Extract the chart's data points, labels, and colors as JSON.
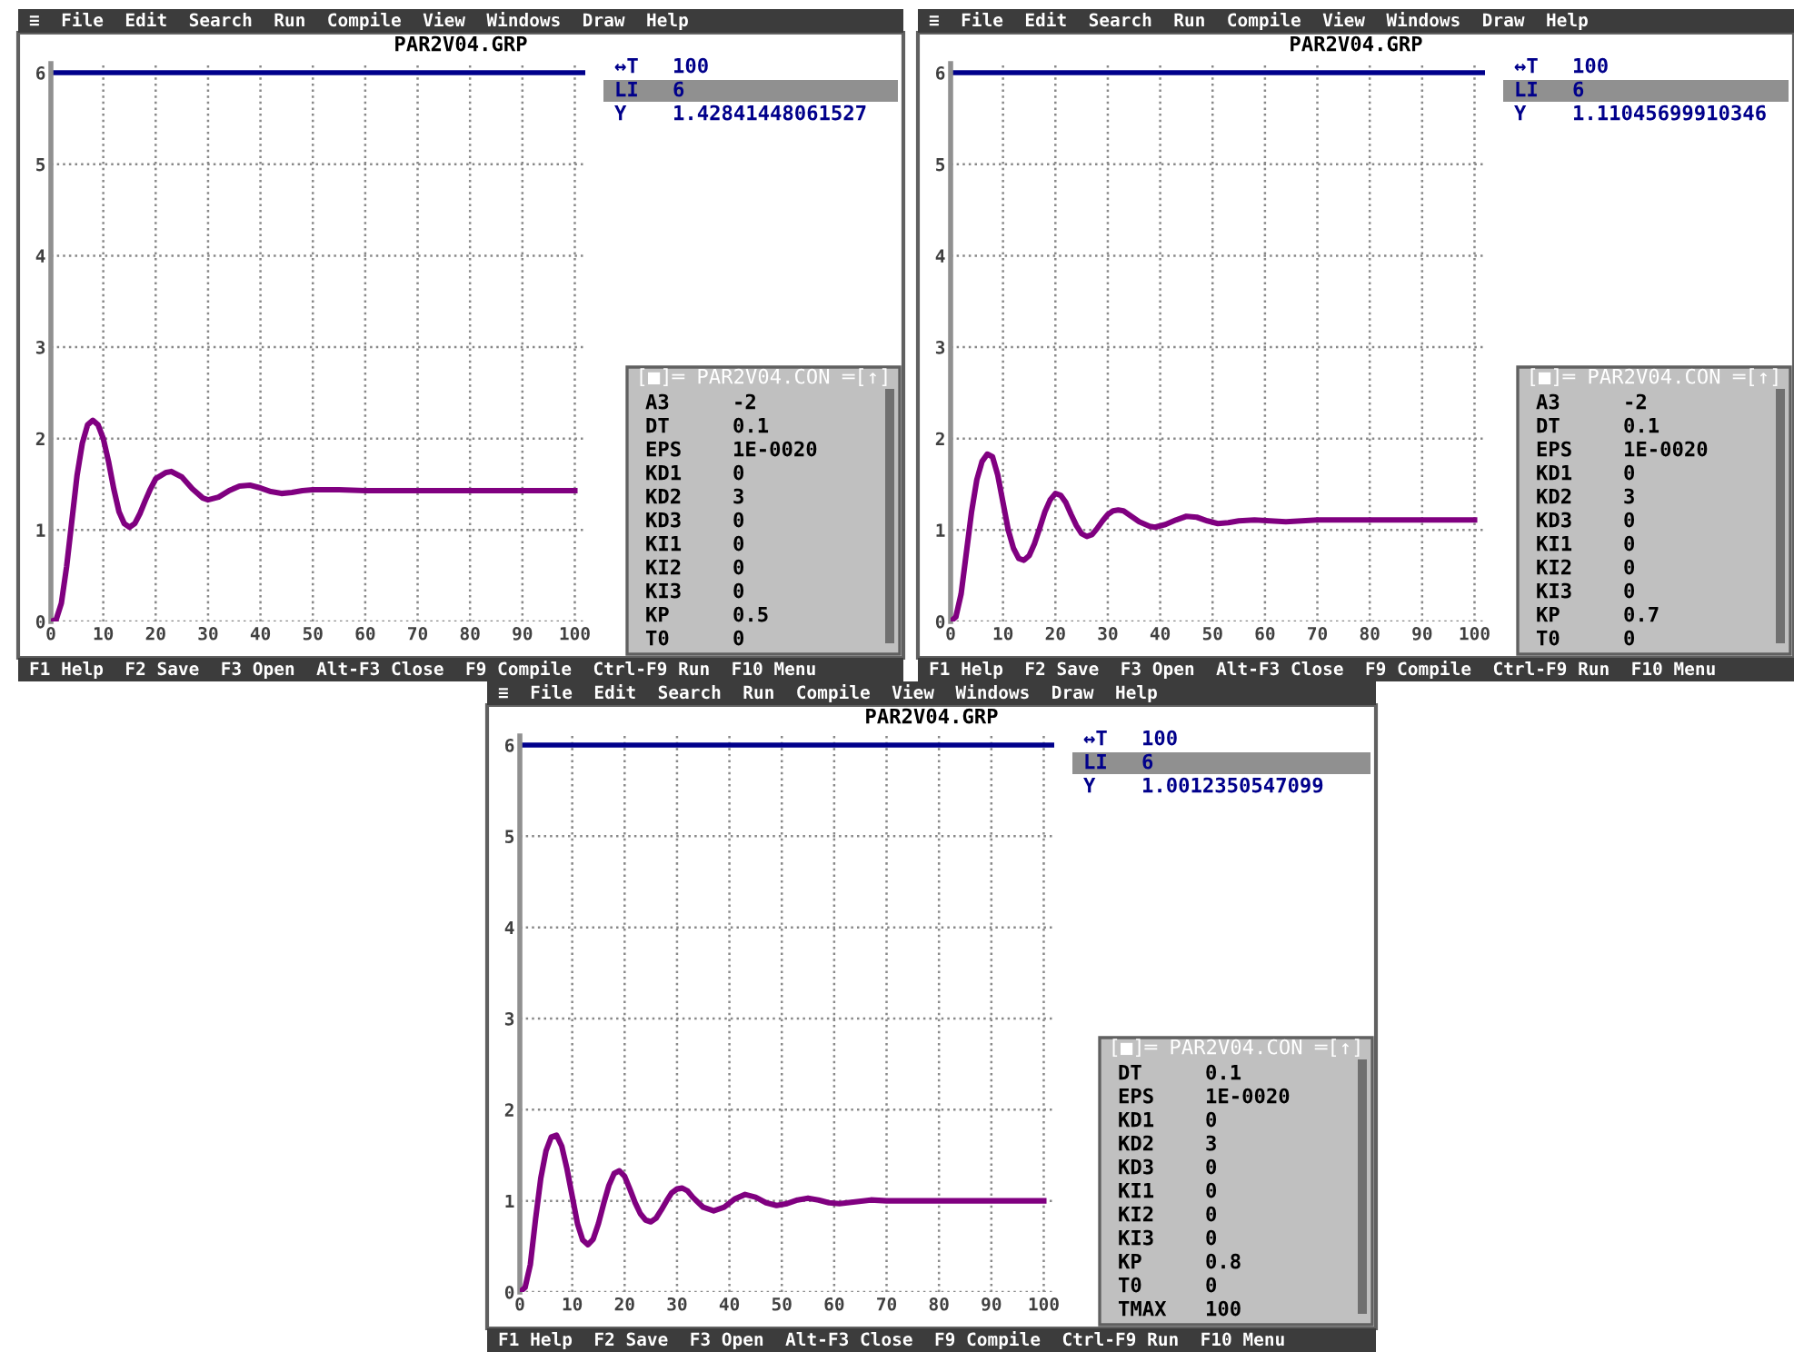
{
  "chart_data": [
    {
      "type": "line",
      "title": "PAR2V04.GRP",
      "xlim": [
        0,
        102
      ],
      "ylim": [
        0,
        6.1
      ],
      "xticks": [
        0,
        10,
        20,
        30,
        40,
        50,
        60,
        70,
        80,
        90,
        100
      ],
      "yticks": [
        0,
        1,
        2,
        3,
        4,
        5,
        6
      ],
      "grid": true,
      "tick_labels": "xy",
      "ref_lines": [
        {
          "axis": "y",
          "value": 6,
          "color": "#00008b"
        }
      ],
      "annotations": [
        "≡  File  Edit  Search  Run  Compile  View  Windows  Draw  Help",
        "F1 Help  F2 Save  F3 Open  Alt-F3 Close  F9 Compile  Ctrl-F9 Run  F10 Menu",
        "↔T 100",
        "LI 6",
        "Y 1.42841448061527"
      ],
      "series": [
        {
          "color": "#800080",
          "x": [
            0,
            1,
            2,
            3,
            4,
            5,
            6,
            7,
            8,
            9,
            10,
            11,
            12,
            13,
            14,
            15,
            16,
            17,
            18,
            19,
            20,
            22,
            23,
            25,
            27,
            29,
            30,
            32,
            34,
            36,
            38,
            40,
            42,
            44,
            46,
            48,
            50,
            55,
            60,
            65,
            70,
            80,
            90,
            100
          ],
          "values": [
            0,
            0.02,
            0.2,
            0.6,
            1.1,
            1.6,
            1.95,
            2.15,
            2.2,
            2.15,
            2.0,
            1.75,
            1.45,
            1.2,
            1.07,
            1.03,
            1.07,
            1.18,
            1.32,
            1.45,
            1.56,
            1.63,
            1.64,
            1.58,
            1.45,
            1.35,
            1.33,
            1.36,
            1.43,
            1.48,
            1.49,
            1.46,
            1.42,
            1.4,
            1.41,
            1.43,
            1.44,
            1.44,
            1.43,
            1.43,
            1.43,
            1.43,
            1.43,
            1.43
          ]
        }
      ]
    },
    {
      "type": "other",
      "title": "[■]═ PAR2V04.CON ═[↑]",
      "annotations": [
        "A3 -2",
        "DT 0.1",
        "EPS 1E-0020",
        "KD1 0",
        "KD2 3",
        "KD3 0",
        "KI1 0",
        "KI2 0",
        "KI3 0",
        "KP 0.5",
        "T0 0"
      ]
    },
    {
      "type": "line",
      "title": "PAR2V04.GRP",
      "xlim": [
        0,
        102
      ],
      "ylim": [
        0,
        6.1
      ],
      "xticks": [
        0,
        10,
        20,
        30,
        40,
        50,
        60,
        70,
        80,
        90,
        100
      ],
      "yticks": [
        0,
        1,
        2,
        3,
        4,
        5,
        6
      ],
      "grid": true,
      "ref_lines": [
        {
          "axis": "y",
          "value": 6,
          "color": "#00008b"
        }
      ],
      "annotations": [
        "≡  File  Edit  Search  Run  Compile  View  Windows  Draw  Help",
        "F1 Help  F2 Save  F3 Open  Alt-F3 Close  F9 Compile  Ctrl-F9 Run  F10 Menu",
        "↔T 100",
        "LI 6",
        "Y 1.11045699910346"
      ],
      "series": [
        {
          "color": "#800080",
          "x": [
            0,
            1,
            2,
            3,
            4,
            5,
            6,
            7,
            8,
            9,
            10,
            11,
            12,
            13,
            14,
            15,
            16,
            17,
            18,
            19,
            20,
            21,
            22,
            23,
            24,
            25,
            26,
            27,
            28,
            29,
            30,
            31,
            32,
            33,
            34,
            36,
            38,
            39,
            41,
            43,
            45,
            47,
            49,
            51,
            53,
            55,
            58,
            61,
            64,
            67,
            70,
            80,
            90,
            100
          ],
          "values": [
            0,
            0.05,
            0.3,
            0.75,
            1.2,
            1.55,
            1.75,
            1.83,
            1.8,
            1.6,
            1.3,
            1.0,
            0.8,
            0.69,
            0.67,
            0.72,
            0.85,
            1.02,
            1.2,
            1.33,
            1.4,
            1.38,
            1.3,
            1.17,
            1.05,
            0.96,
            0.93,
            0.95,
            1.02,
            1.1,
            1.17,
            1.21,
            1.22,
            1.21,
            1.17,
            1.09,
            1.04,
            1.03,
            1.06,
            1.11,
            1.15,
            1.14,
            1.1,
            1.07,
            1.08,
            1.1,
            1.11,
            1.1,
            1.09,
            1.1,
            1.11,
            1.11,
            1.11,
            1.11
          ]
        }
      ]
    },
    {
      "type": "other",
      "title": "[■]═ PAR2V04.CON ═[↑]",
      "annotations": [
        "A3 -2",
        "DT 0.1",
        "EPS 1E-0020",
        "KD1 0",
        "KD2 3",
        "KD3 0",
        "KI1 0",
        "KI2 0",
        "KI3 0",
        "KP 0.7",
        "T0 0"
      ]
    },
    {
      "type": "line",
      "title": "PAR2V04.GRP",
      "xlim": [
        0,
        102
      ],
      "ylim": [
        0,
        6.1
      ],
      "xticks": [
        0,
        10,
        20,
        30,
        40,
        50,
        60,
        70,
        80,
        90,
        100
      ],
      "yticks": [
        0,
        1,
        2,
        3,
        4,
        5,
        6
      ],
      "grid": true,
      "ref_lines": [
        {
          "axis": "y",
          "value": 6,
          "color": "#00008b"
        }
      ],
      "annotations": [
        "≡  File  Edit  Search  Run  Compile  View  Windows  Draw  Help",
        "F1 Help  F2 Save  F3 Open  Alt-F3 Close  F9 Compile  Ctrl-F9 Run  F10 Menu",
        "↔T 100",
        "LI 6",
        "Y 1.0012350547099"
      ],
      "series": [
        {
          "color": "#800080",
          "x": [
            0,
            1,
            2,
            3,
            4,
            5,
            6,
            7,
            8,
            9,
            10,
            11,
            12,
            13,
            14,
            15,
            16,
            17,
            18,
            19,
            20,
            21,
            22,
            23,
            24,
            25,
            26,
            27,
            28,
            29,
            30,
            31,
            32,
            33,
            35,
            37,
            39,
            41,
            43,
            45,
            47,
            49,
            51,
            53,
            55,
            57,
            59,
            61,
            64,
            67,
            70,
            80,
            90,
            100
          ],
          "values": [
            0,
            0.05,
            0.3,
            0.8,
            1.25,
            1.55,
            1.7,
            1.72,
            1.6,
            1.35,
            1.05,
            0.75,
            0.57,
            0.52,
            0.58,
            0.75,
            0.97,
            1.17,
            1.3,
            1.33,
            1.27,
            1.13,
            0.98,
            0.86,
            0.79,
            0.77,
            0.81,
            0.9,
            1.0,
            1.09,
            1.13,
            1.14,
            1.11,
            1.04,
            0.93,
            0.89,
            0.93,
            1.02,
            1.07,
            1.04,
            0.98,
            0.95,
            0.97,
            1.01,
            1.03,
            1.01,
            0.98,
            0.97,
            0.99,
            1.01,
            1.0,
            1.0,
            1.0,
            1.0
          ]
        }
      ]
    },
    {
      "type": "other",
      "title": "[■]═ PAR2V04.CON ═[↑]",
      "annotations": [
        "DT 0.1",
        "EPS 1E-0020",
        "KD1 0",
        "KD2 3",
        "KD3 0",
        "KI1 0",
        "KI2 0",
        "KI3 0",
        "KP 0.8",
        "T0 0",
        "TMAX 100"
      ]
    }
  ]
}
